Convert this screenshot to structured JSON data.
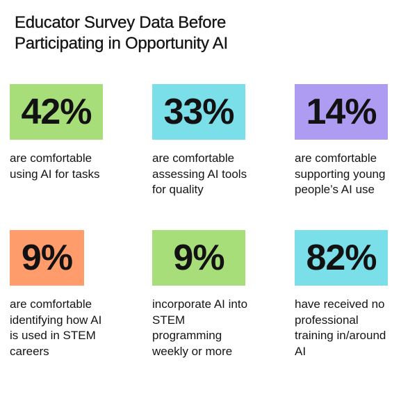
{
  "title": "Educator Survey Data Before\nParticipating in Opportunity AI",
  "stats": [
    {
      "value": "42%",
      "description": "are comfortable\nusing AI for tasks",
      "color": "#a8de7a"
    },
    {
      "value": "33%",
      "description": "are comfortable\nassessing AI tools\nfor quality",
      "color": "#7adfe9"
    },
    {
      "value": "14%",
      "description": "are comfortable\nsupporting young\npeople’s AI use",
      "color": "#ad9cf2"
    },
    {
      "value": "9%",
      "description": "are comfortable\nidentifying how AI\nis used in STEM\ncareers",
      "color": "#ff9c6c"
    },
    {
      "value": "9%",
      "description": "incorporate AI into\nSTEM\nprogramming\nweekly or more",
      "color": "#a8de7a"
    },
    {
      "value": "82%",
      "description": "have received no\nprofessional\ntraining in/around\nAI",
      "color": "#7adfe9"
    }
  ]
}
